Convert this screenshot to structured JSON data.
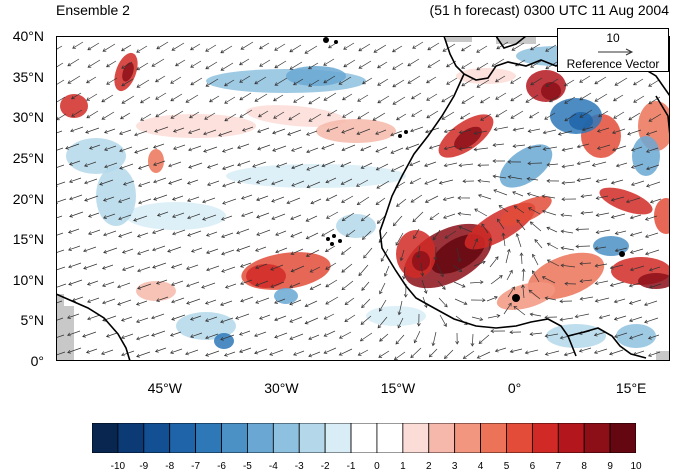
{
  "header": {
    "left": "Ensemble 2",
    "right": "(51 h forecast) 0300 UTC 11 Aug 2004"
  },
  "axes": {
    "lat_labels": [
      "0°",
      "5°N",
      "10°N",
      "15°N",
      "20°N",
      "25°N",
      "30°N",
      "35°N",
      "40°N"
    ],
    "lat_values": [
      0,
      5,
      10,
      15,
      20,
      25,
      30,
      35,
      40
    ],
    "lon_labels": [
      "45°W",
      "30°W",
      "15°W",
      "0°",
      "15°E"
    ],
    "lon_values": [
      -45,
      -30,
      -15,
      0,
      15
    ],
    "lon_range": [
      -59,
      20
    ],
    "lat_range": [
      0,
      40
    ]
  },
  "reference_vector": {
    "magnitude": "10",
    "label": "Reference Vector"
  },
  "colorbar": {
    "labels": [
      "-10",
      "-9",
      "-8",
      "-7",
      "-6",
      "-5",
      "-4",
      "-3",
      "-2",
      "-1",
      "0",
      "1",
      "2",
      "3",
      "4",
      "5",
      "6",
      "7",
      "8",
      "9",
      "10"
    ],
    "colors": [
      "#08264f",
      "#0b3a75",
      "#134f93",
      "#1f64a8",
      "#2e78b8",
      "#4b91c6",
      "#6aa8d3",
      "#8ec1df",
      "#b4d8ea",
      "#d8edf6",
      "#ffffff",
      "#ffffff",
      "#fbdcd7",
      "#f6b8aa",
      "#f29680",
      "#ec7358",
      "#e34c38",
      "#d12a26",
      "#b4161e",
      "#8c0f17",
      "#640710"
    ]
  },
  "style": {
    "coast": "#000000",
    "land_gray": "#c8c8c8",
    "vector": "#333333"
  }
}
